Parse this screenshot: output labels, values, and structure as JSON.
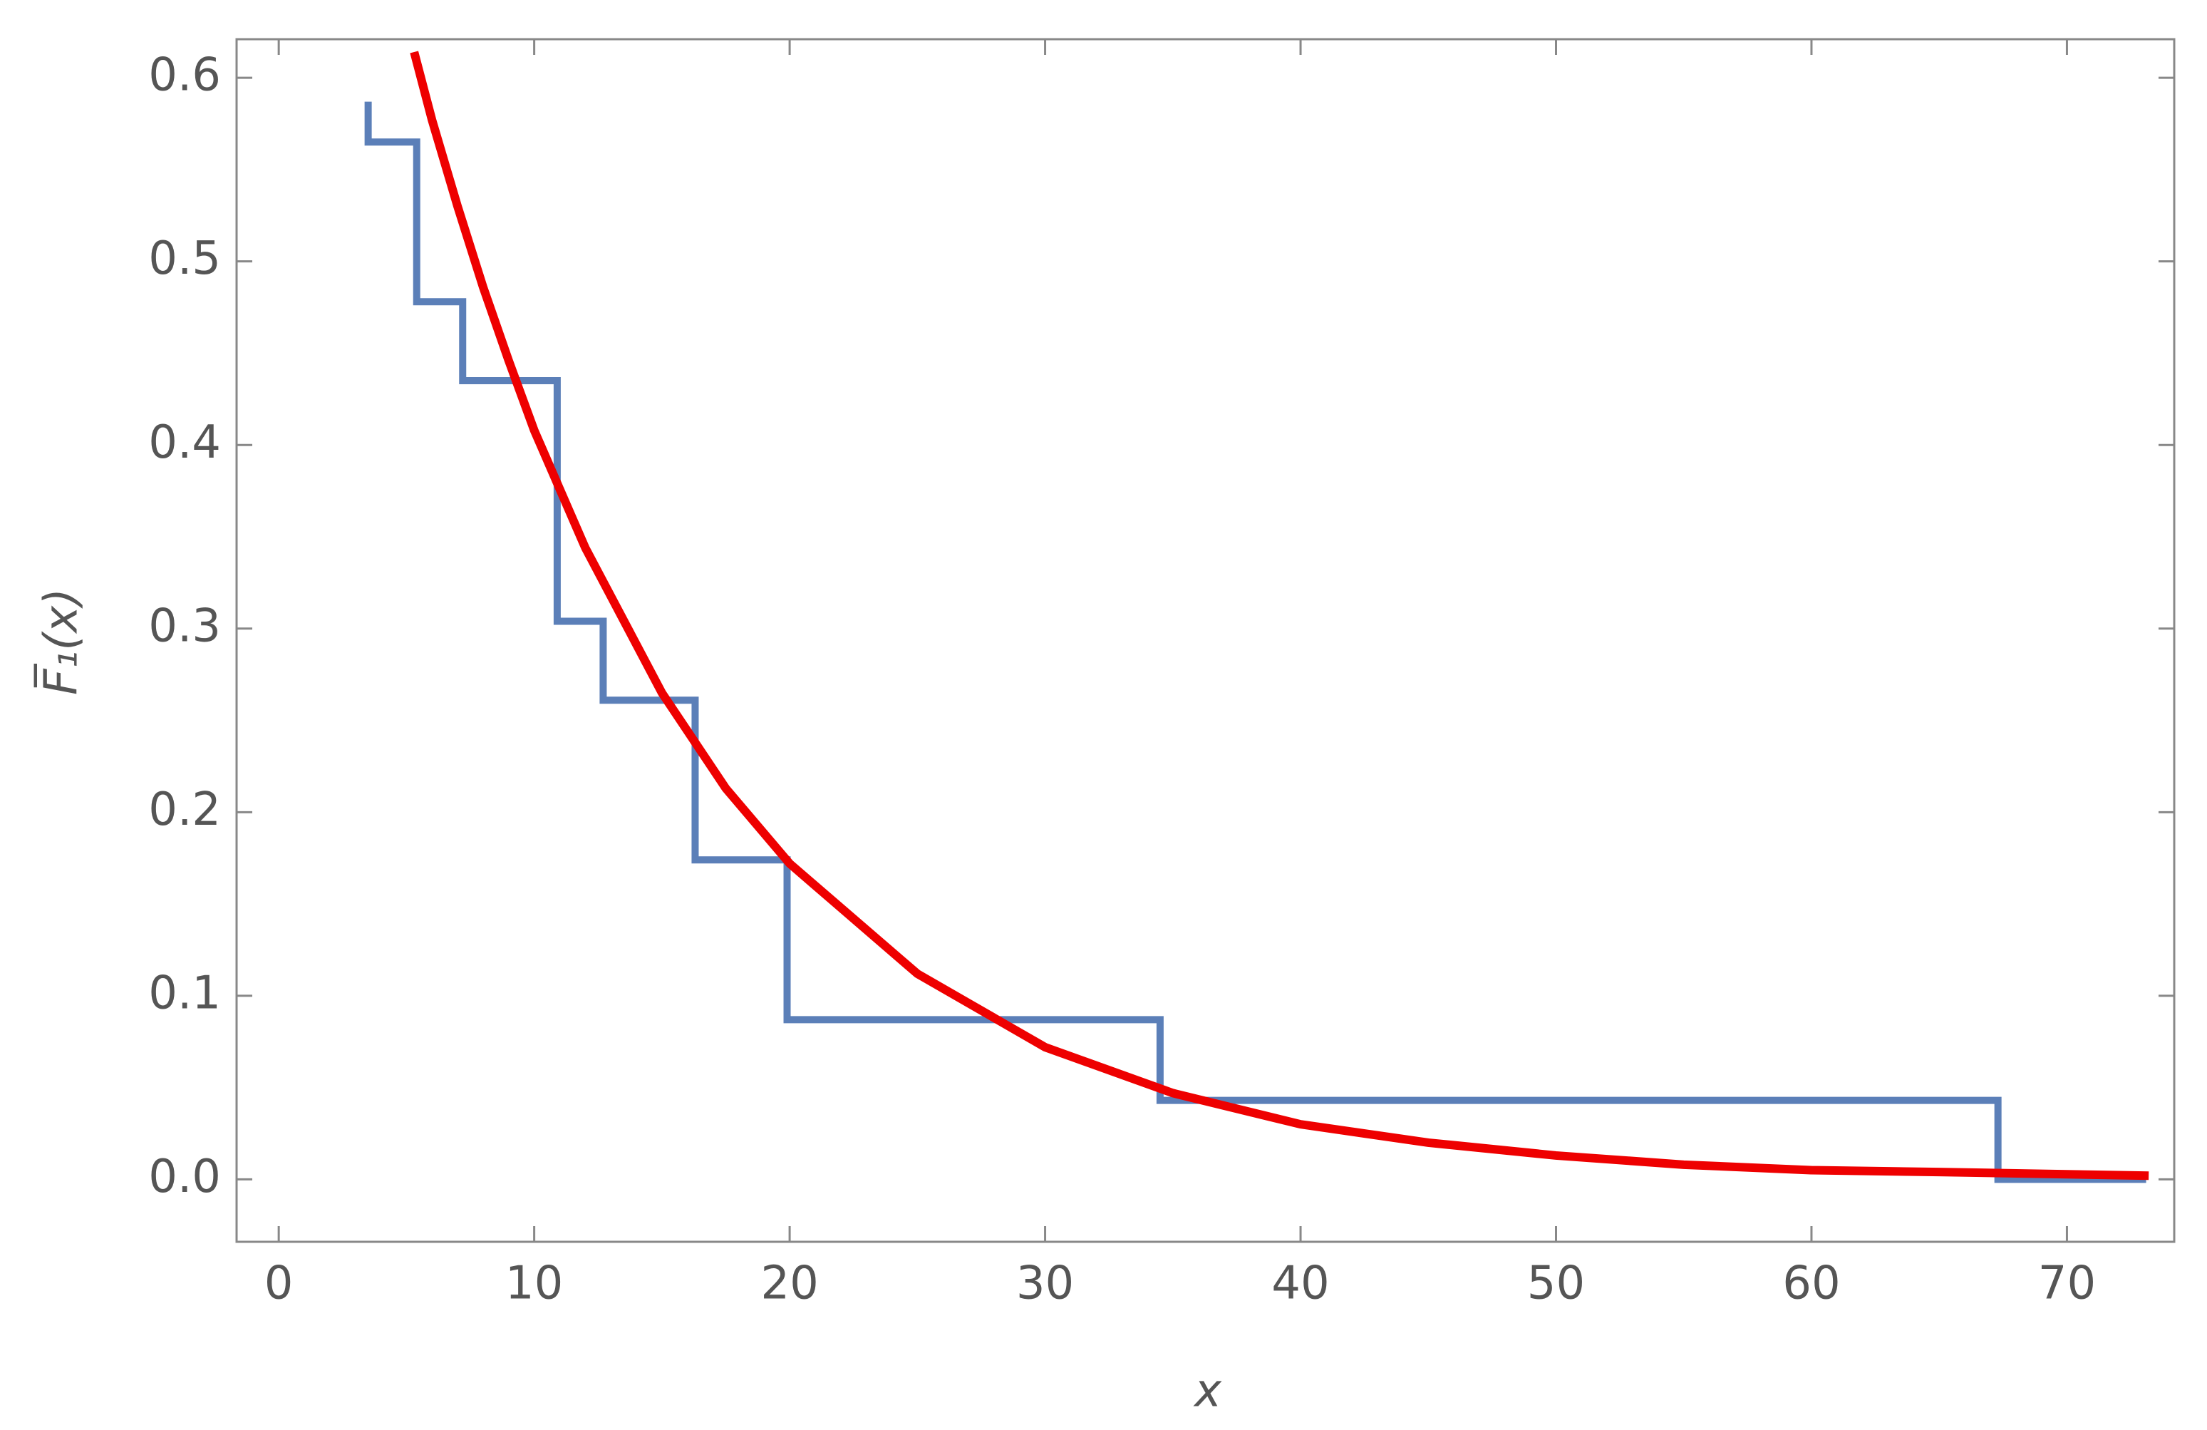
{
  "chart_data": {
    "type": "line",
    "x_label": "x",
    "y_label": "F̅₁(x)",
    "xlim": [
      -1.65,
      74.2
    ],
    "ylim": [
      -0.034,
      0.621
    ],
    "xticks": [
      0,
      10,
      20,
      30,
      40,
      50,
      60,
      70
    ],
    "yticks": [
      {
        "value": 0,
        "label": "0.0"
      },
      0.1,
      0.2,
      0.3,
      0.4,
      0.5,
      0.6
    ],
    "series": [
      {
        "color": "#5b7fb8",
        "x": [
          3.5,
          3.5,
          5.4,
          5.4,
          7.2,
          7.2,
          10.9,
          10.9,
          12.7,
          12.7,
          16.3,
          16.3,
          19.9,
          19.9,
          34.5,
          34.5,
          67.3,
          67.3,
          73.1
        ],
        "values": [
          0.587,
          0.565,
          0.565,
          0.478,
          0.478,
          0.435,
          0.435,
          0.304,
          0.304,
          0.261,
          0.261,
          0.174,
          0.174,
          0.087,
          0.087,
          0.043,
          0.043,
          0,
          0
        ]
      },
      {
        "color": "#ee0000",
        "x": [
          5.3,
          6,
          7,
          8,
          9,
          10,
          12,
          15,
          17.5,
          20,
          25,
          30,
          35,
          40,
          45,
          50,
          55,
          60,
          65,
          73.2
        ],
        "values": [
          0.614,
          0.577,
          0.53,
          0.486,
          0.446,
          0.408,
          0.344,
          0.265,
          0.213,
          0.172,
          0.112,
          0.072,
          0.047,
          0.03,
          0.02,
          0.013,
          0.008,
          0.005,
          0.004,
          0.002
        ]
      }
    ]
  }
}
